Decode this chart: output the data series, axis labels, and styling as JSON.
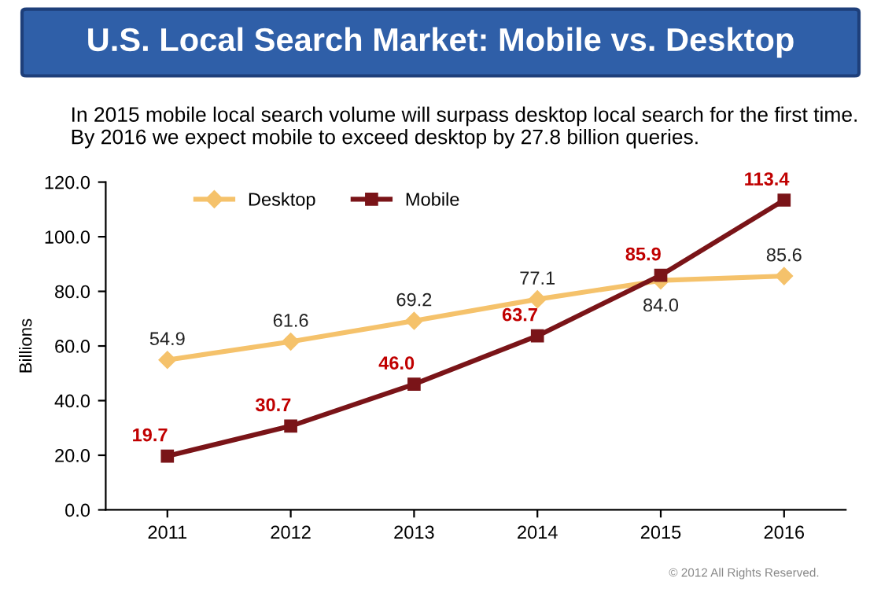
{
  "chart_data": {
    "type": "line",
    "title": "U.S. Local Search Market: Mobile vs. Desktop",
    "subtitle": "In 2015 mobile local search volume will surpass desktop local search for the first time. By 2016 we expect mobile to exceed desktop by 27.8 billion queries.",
    "ylabel": "Billions",
    "categories": [
      "2011",
      "2012",
      "2013",
      "2014",
      "2015",
      "2016"
    ],
    "series": [
      {
        "name": "Desktop",
        "color": "#f5c26b",
        "marker": "diamond",
        "values": [
          54.9,
          61.6,
          69.2,
          77.1,
          84.0,
          85.6
        ],
        "value_labels": [
          "54.9",
          "61.6",
          "69.2",
          "77.1",
          "84.0",
          "85.6"
        ]
      },
      {
        "name": "Mobile",
        "color": "#7a1418",
        "marker": "square",
        "values": [
          19.7,
          30.7,
          46.0,
          63.7,
          85.9,
          113.4
        ],
        "value_labels": [
          "19.7",
          "30.7",
          "46.0",
          "63.7",
          "85.9",
          "113.4"
        ]
      }
    ],
    "ylim": [
      0,
      120
    ],
    "yticks": [
      {
        "value": 0,
        "label": "0.0"
      },
      {
        "value": 20,
        "label": "20.0"
      },
      {
        "value": 40,
        "label": "40.0"
      },
      {
        "value": 60,
        "label": "60.0"
      },
      {
        "value": 80,
        "label": "80.0"
      },
      {
        "value": 100,
        "label": "100.0"
      },
      {
        "value": 120,
        "label": "120.0"
      }
    ],
    "legend": "top",
    "grid": false,
    "annotations": [
      "© 2012 All Rights Reserved."
    ]
  }
}
